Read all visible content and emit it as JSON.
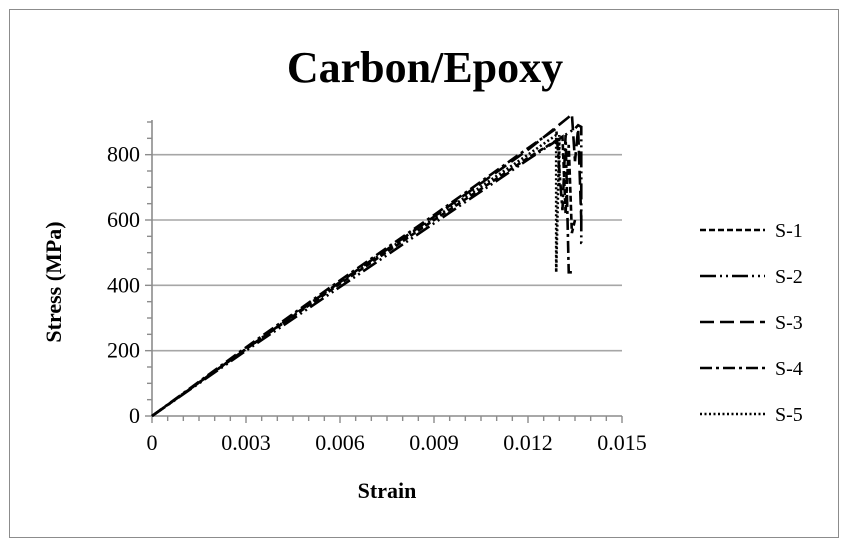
{
  "chart_data": {
    "type": "line",
    "title": "Carbon/Epoxy",
    "xlabel": "Strain",
    "ylabel": "Stress (MPa)",
    "xlim": [
      0,
      0.015
    ],
    "ylim": [
      0,
      900
    ],
    "xticks": [
      "0",
      "0.003",
      "0.006",
      "0.009",
      "0.012",
      "0.015"
    ],
    "xtick_values": [
      0,
      0.003,
      0.006,
      0.009,
      0.012,
      0.015
    ],
    "yticks": [
      "0",
      "200",
      "400",
      "600",
      "800"
    ],
    "ytick_values": [
      0,
      200,
      400,
      600,
      800
    ],
    "grid": "horizontal",
    "legend_position": "right",
    "series": [
      {
        "name": "S-1",
        "dash": "short-dash",
        "x": [
          0,
          0.003,
          0.006,
          0.009,
          0.012,
          0.0131,
          0.0132,
          0.0133,
          0.0134,
          0.0135
        ],
        "y": [
          0,
          205,
          405,
          600,
          790,
          855,
          620,
          830,
          560,
          600
        ]
      },
      {
        "name": "S-2",
        "dash": "long-dash-dot-dot",
        "x": [
          0,
          0.003,
          0.006,
          0.009,
          0.012,
          0.0135,
          0.0136,
          0.0137,
          0.0137,
          0.0138
        ],
        "y": [
          0,
          200,
          395,
          590,
          785,
          880,
          890,
          885,
          530,
          530
        ]
      },
      {
        "name": "S-3",
        "dash": "long-dash",
        "x": [
          0,
          0.003,
          0.006,
          0.009,
          0.012,
          0.0133,
          0.0134,
          0.0135,
          0.0136,
          0.0137
        ],
        "y": [
          0,
          205,
          410,
          610,
          815,
          915,
          925,
          780,
          880,
          600
        ]
      },
      {
        "name": "S-4",
        "dash": "dash-dot",
        "x": [
          0,
          0.003,
          0.006,
          0.009,
          0.012,
          0.0129,
          0.0131,
          0.0132,
          0.0133,
          0.0134
        ],
        "y": [
          0,
          210,
          415,
          615,
          820,
          880,
          630,
          860,
          440,
          440
        ]
      },
      {
        "name": "S-5",
        "dash": "dotted",
        "x": [
          0,
          0.003,
          0.006,
          0.009,
          0.012,
          0.0129,
          0.0129,
          0.013,
          0.013
        ],
        "y": [
          0,
          205,
          410,
          605,
          800,
          860,
          440,
          860,
          700
        ]
      }
    ]
  },
  "colors": {
    "line": "#000000",
    "grid": "#a6a6a6",
    "axis": "#8c8c8c",
    "frame": "#8c8c8c"
  }
}
